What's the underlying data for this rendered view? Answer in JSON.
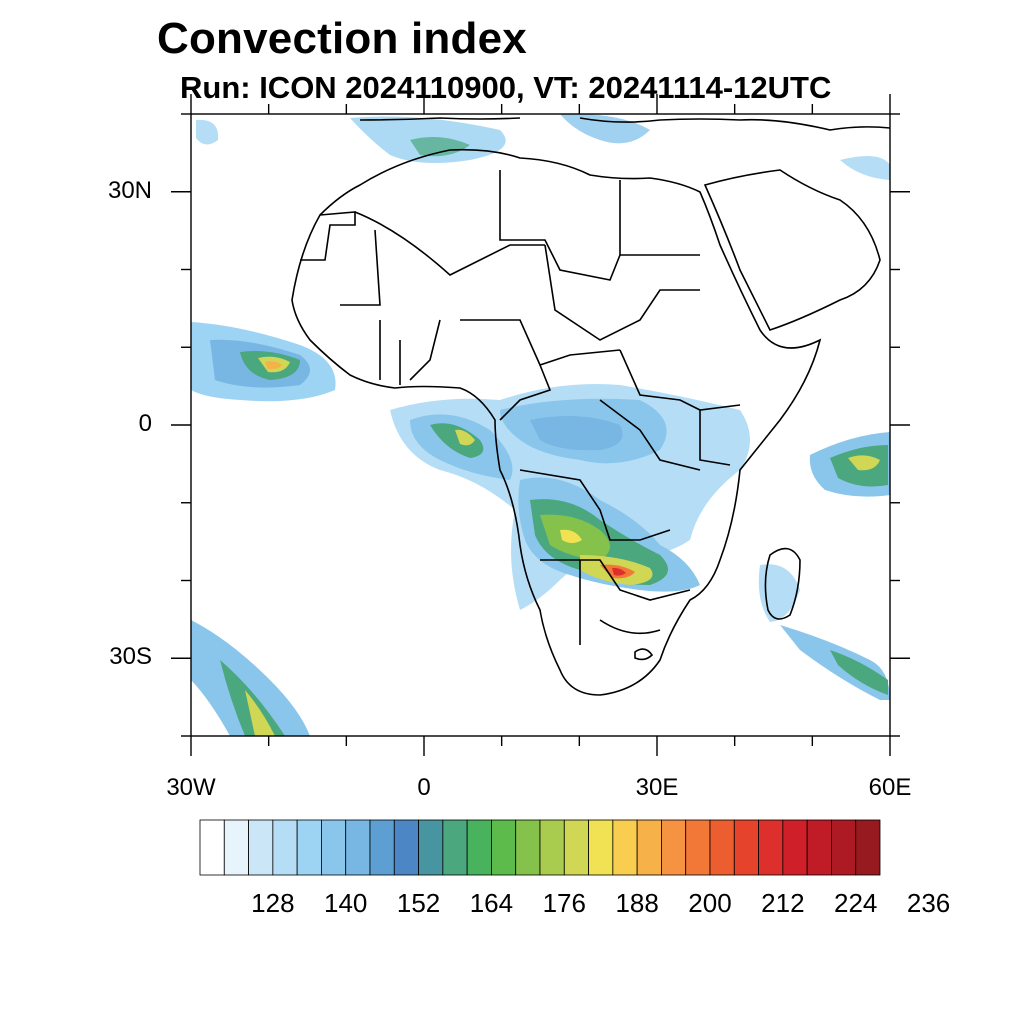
{
  "title": "Convection index",
  "subtitle": "Run: ICON 2024110900,  VT: 20241114-12UTC",
  "map": {
    "projection": "cylindrical-equidistant",
    "lon_range": [
      -30,
      60
    ],
    "lat_range": [
      -40,
      40
    ],
    "lat_ticks": [
      {
        "value": 30,
        "label": "30N"
      },
      {
        "value": 0,
        "label": "0"
      },
      {
        "value": -30,
        "label": "30S"
      }
    ],
    "lon_ticks": [
      {
        "value": -30,
        "label": "30W"
      },
      {
        "value": 0,
        "label": "0"
      },
      {
        "value": 30,
        "label": "30E"
      },
      {
        "value": 60,
        "label": "60E"
      }
    ],
    "minor_lat_ticks": [
      40,
      20,
      10,
      -10,
      -20,
      -40
    ],
    "minor_lon_ticks": [
      -20,
      -10,
      10,
      20,
      40,
      50
    ]
  },
  "colorbar": {
    "colors": [
      "#ffffff",
      "#e8f4fc",
      "#cbe6f7",
      "#b5def6",
      "#9ed4f3",
      "#8ac6ec",
      "#78b6e4",
      "#5e9fd3",
      "#4c86c4",
      "#4795a0",
      "#4aa77e",
      "#48b25d",
      "#5dbb4b",
      "#84c24c",
      "#a9cc4f",
      "#cfd754",
      "#f0e252",
      "#f8cd50",
      "#f6b149",
      "#f69343",
      "#f27838",
      "#ec5d2f",
      "#e5432b",
      "#dd2f2b",
      "#cf2029",
      "#bf1c27",
      "#ad1a24",
      "#961a20"
    ],
    "labels": [
      "128",
      "140",
      "152",
      "164",
      "176",
      "188",
      "200",
      "212",
      "224",
      "236"
    ],
    "label_steps": [
      2,
      6,
      10,
      14,
      18,
      22,
      26,
      30,
      34,
      38
    ]
  }
}
